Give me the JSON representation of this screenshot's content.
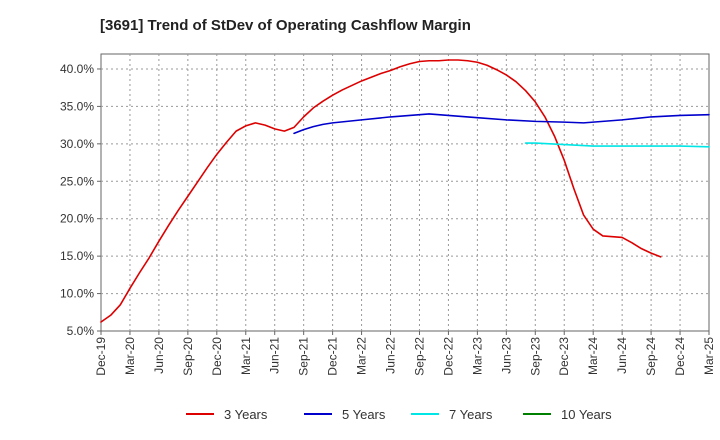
{
  "chart_data": {
    "type": "line",
    "title": "[3691]  Trend of StDev of Operating Cashflow Margin",
    "xlabel": "",
    "ylabel": "",
    "x_tick_labels": [
      "Dec-19",
      "Mar-20",
      "Jun-20",
      "Sep-20",
      "Dec-20",
      "Mar-21",
      "Jun-21",
      "Sep-21",
      "Dec-21",
      "Mar-22",
      "Jun-22",
      "Sep-22",
      "Dec-22",
      "Mar-23",
      "Jun-23",
      "Sep-23",
      "Dec-23",
      "Mar-24",
      "Jun-24",
      "Sep-24",
      "Dec-24",
      "Mar-25"
    ],
    "y_ticks": [
      5.0,
      10.0,
      15.0,
      20.0,
      25.0,
      30.0,
      35.0,
      40.0
    ],
    "y_tick_labels": [
      "5.0%",
      "10.0%",
      "15.0%",
      "20.0%",
      "25.0%",
      "30.0%",
      "35.0%",
      "40.0%"
    ],
    "ylim": [
      5.0,
      42.0
    ],
    "grid": true,
    "legend_position": "bottom",
    "series": [
      {
        "name": "3 Years",
        "color": "#dd0000",
        "points": [
          [
            "Dec-19",
            6.2
          ],
          [
            "Jan-20",
            7.1
          ],
          [
            "Feb-20",
            8.5
          ],
          [
            "Mar-20",
            10.7
          ],
          [
            "Apr-20",
            12.8
          ],
          [
            "May-20",
            14.8
          ],
          [
            "Jun-20",
            17.0
          ],
          [
            "Jul-20",
            19.1
          ],
          [
            "Aug-20",
            21.1
          ],
          [
            "Sep-20",
            23.0
          ],
          [
            "Oct-20",
            24.9
          ],
          [
            "Nov-20",
            26.8
          ],
          [
            "Dec-20",
            28.6
          ],
          [
            "Jan-21",
            30.2
          ],
          [
            "Feb-21",
            31.7
          ],
          [
            "Mar-21",
            32.4
          ],
          [
            "Apr-21",
            32.8
          ],
          [
            "May-21",
            32.5
          ],
          [
            "Jun-21",
            32.0
          ],
          [
            "Jul-21",
            31.7
          ],
          [
            "Aug-21",
            32.2
          ],
          [
            "Sep-21",
            33.6
          ],
          [
            "Oct-21",
            34.8
          ],
          [
            "Nov-21",
            35.7
          ],
          [
            "Dec-21",
            36.5
          ],
          [
            "Jan-22",
            37.2
          ],
          [
            "Feb-22",
            37.8
          ],
          [
            "Mar-22",
            38.4
          ],
          [
            "Apr-22",
            38.9
          ],
          [
            "May-22",
            39.4
          ],
          [
            "Jun-22",
            39.8
          ],
          [
            "Jul-22",
            40.3
          ],
          [
            "Aug-22",
            40.7
          ],
          [
            "Sep-22",
            41.0
          ],
          [
            "Oct-22",
            41.1
          ],
          [
            "Nov-22",
            41.1
          ],
          [
            "Dec-22",
            41.2
          ],
          [
            "Jan-23",
            41.2
          ],
          [
            "Feb-23",
            41.1
          ],
          [
            "Mar-23",
            40.9
          ],
          [
            "Apr-23",
            40.5
          ],
          [
            "May-23",
            39.9
          ],
          [
            "Jun-23",
            39.2
          ],
          [
            "Jul-23",
            38.3
          ],
          [
            "Aug-23",
            37.1
          ],
          [
            "Sep-23",
            35.6
          ],
          [
            "Oct-23",
            33.6
          ],
          [
            "Nov-23",
            31.0
          ],
          [
            "Dec-23",
            27.8
          ],
          [
            "Jan-24",
            24.0
          ],
          [
            "Feb-24",
            20.5
          ],
          [
            "Mar-24",
            18.6
          ],
          [
            "Apr-24",
            17.7
          ],
          [
            "May-24",
            17.6
          ],
          [
            "Jun-24",
            17.5
          ],
          [
            "Jul-24",
            16.8
          ],
          [
            "Aug-24",
            16.0
          ],
          [
            "Sep-24",
            15.4
          ],
          [
            "Oct-24",
            14.9
          ]
        ]
      },
      {
        "name": "5 Years",
        "color": "#0000cc",
        "points": [
          [
            "Aug-21",
            31.4
          ],
          [
            "Sep-21",
            31.9
          ],
          [
            "Oct-21",
            32.3
          ],
          [
            "Nov-21",
            32.6
          ],
          [
            "Dec-21",
            32.8
          ],
          [
            "Mar-22",
            33.2
          ],
          [
            "Jun-22",
            33.6
          ],
          [
            "Sep-22",
            33.9
          ],
          [
            "Oct-22",
            34.0
          ],
          [
            "Dec-22",
            33.8
          ],
          [
            "Mar-23",
            33.5
          ],
          [
            "Jun-23",
            33.2
          ],
          [
            "Sep-23",
            33.0
          ],
          [
            "Dec-23",
            32.9
          ],
          [
            "Feb-24",
            32.8
          ],
          [
            "Mar-24",
            32.9
          ],
          [
            "Jun-24",
            33.2
          ],
          [
            "Sep-24",
            33.6
          ],
          [
            "Dec-24",
            33.8
          ],
          [
            "Mar-25",
            33.9
          ]
        ]
      },
      {
        "name": "7 Years",
        "color": "#00e5e5",
        "points": [
          [
            "Aug-23",
            30.1
          ],
          [
            "Sep-23",
            30.1
          ],
          [
            "Dec-23",
            29.9
          ],
          [
            "Mar-24",
            29.7
          ],
          [
            "Jun-24",
            29.7
          ],
          [
            "Sep-24",
            29.7
          ],
          [
            "Dec-24",
            29.7
          ],
          [
            "Mar-25",
            29.6
          ]
        ]
      },
      {
        "name": "10 Years",
        "color": "#008000",
        "points": []
      }
    ]
  }
}
